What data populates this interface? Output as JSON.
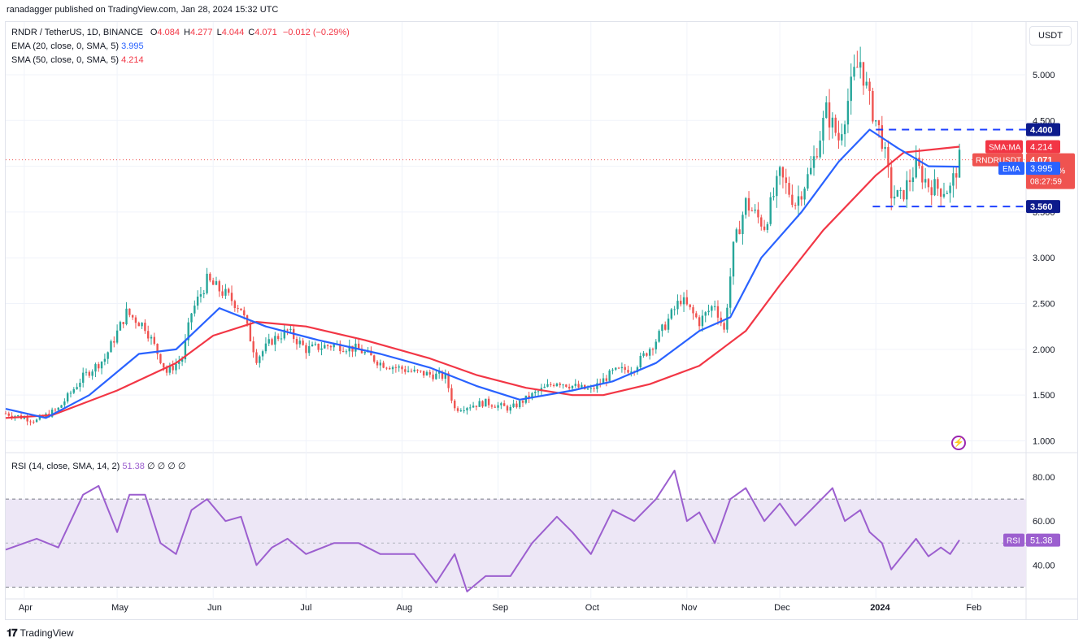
{
  "header": {
    "publisher": "ranadagger published on TradingView.com, Jan 28, 2024 15:32 UTC"
  },
  "legend": {
    "symbol": "RNDR / TetherUS, 1D, BINANCE",
    "o_label": "O",
    "o": "4.084",
    "h_label": "H",
    "h": "4.277",
    "l_label": "L",
    "l": "4.044",
    "c_label": "C",
    "c": "4.071",
    "change": "−0.012 (−0.29%)",
    "ema_label": "EMA (20, close, 0, SMA, 5)",
    "ema_value": "3.995",
    "sma_label": "SMA (50, close, 0, SMA, 5)",
    "sma_value": "4.214",
    "rsi_label": "RSI (14, close, SMA, 14, 2)",
    "rsi_value": "51.38",
    "rsi_extra": "∅ ∅ ∅ ∅"
  },
  "currency_button": "USDT",
  "footer": {
    "brand": "TradingView"
  },
  "colors": {
    "up": "#26a69a",
    "down": "#ef5350",
    "ema": "#2962ff",
    "sma": "#f23645",
    "rsi": "#9c5fcf",
    "rsi_band": "#ede7f6",
    "level": "#1e40ff",
    "grid": "#f0f3fa"
  },
  "chart_data": [
    {
      "type": "candlestick",
      "title": "RNDR / TetherUS, 1D, BINANCE",
      "x_range": [
        "2023-03-26",
        "2024-02-18"
      ],
      "x_ticks": [
        "Apr",
        "May",
        "Jun",
        "Jul",
        "Aug",
        "Sep",
        "Oct",
        "Nov",
        "Dec",
        "2024",
        "Feb"
      ],
      "ylim": [
        0.88,
        5.55
      ],
      "y_ticks": [
        "1.000",
        "1.500",
        "2.000",
        "2.500",
        "3.000",
        "3.500",
        "4.000",
        "4.500",
        "5.000"
      ],
      "grid": true,
      "close_path": [
        [
          "2023-03-26",
          1.3
        ],
        [
          "2023-04-05",
          1.22
        ],
        [
          "2023-04-12",
          1.35
        ],
        [
          "2023-04-20",
          1.7
        ],
        [
          "2023-04-27",
          1.9
        ],
        [
          "2023-05-04",
          2.4
        ],
        [
          "2023-05-10",
          2.25
        ],
        [
          "2023-05-17",
          1.75
        ],
        [
          "2023-05-22",
          1.9
        ],
        [
          "2023-05-25",
          2.4
        ],
        [
          "2023-05-30",
          2.75
        ],
        [
          "2023-06-05",
          2.6
        ],
        [
          "2023-06-10",
          2.45
        ],
        [
          "2023-06-15",
          1.9
        ],
        [
          "2023-06-20",
          2.1
        ],
        [
          "2023-06-25",
          2.2
        ],
        [
          "2023-07-01",
          2.0
        ],
        [
          "2023-07-10",
          2.05
        ],
        [
          "2023-07-18",
          2.0
        ],
        [
          "2023-07-25",
          1.85
        ],
        [
          "2023-08-05",
          1.75
        ],
        [
          "2023-08-15",
          1.7
        ],
        [
          "2023-08-18",
          1.35
        ],
        [
          "2023-08-28",
          1.42
        ],
        [
          "2023-09-05",
          1.35
        ],
        [
          "2023-09-12",
          1.5
        ],
        [
          "2023-09-20",
          1.65
        ],
        [
          "2023-09-25",
          1.6
        ],
        [
          "2023-10-01",
          1.55
        ],
        [
          "2023-10-08",
          1.75
        ],
        [
          "2023-10-15",
          1.8
        ],
        [
          "2023-10-22",
          2.1
        ],
        [
          "2023-10-30",
          2.55
        ],
        [
          "2023-11-05",
          2.3
        ],
        [
          "2023-11-10",
          2.5
        ],
        [
          "2023-11-13",
          2.2
        ],
        [
          "2023-11-16",
          3.1
        ],
        [
          "2023-11-20",
          3.6
        ],
        [
          "2023-11-26",
          3.35
        ],
        [
          "2023-12-01",
          3.9
        ],
        [
          "2023-12-06",
          3.6
        ],
        [
          "2023-12-11",
          3.95
        ],
        [
          "2023-12-16",
          4.6
        ],
        [
          "2023-12-20",
          4.3
        ],
        [
          "2023-12-25",
          5.0
        ],
        [
          "2023-12-27",
          5.15
        ],
        [
          "2023-12-30",
          4.7
        ],
        [
          "2024-01-03",
          4.3
        ],
        [
          "2024-01-06",
          3.7
        ],
        [
          "2024-01-09",
          3.65
        ],
        [
          "2024-01-14",
          4.0
        ],
        [
          "2024-01-18",
          3.8
        ],
        [
          "2024-01-22",
          3.75
        ],
        [
          "2024-01-25",
          3.75
        ],
        [
          "2024-01-28",
          4.071
        ]
      ],
      "sma50_path": [
        [
          "2023-03-26",
          1.25
        ],
        [
          "2023-04-10",
          1.28
        ],
        [
          "2023-05-01",
          1.55
        ],
        [
          "2023-05-20",
          1.85
        ],
        [
          "2023-06-01",
          2.15
        ],
        [
          "2023-06-15",
          2.3
        ],
        [
          "2023-07-01",
          2.25
        ],
        [
          "2023-07-20",
          2.1
        ],
        [
          "2023-08-10",
          1.9
        ],
        [
          "2023-08-25",
          1.72
        ],
        [
          "2023-09-10",
          1.58
        ],
        [
          "2023-09-25",
          1.5
        ],
        [
          "2023-10-05",
          1.5
        ],
        [
          "2023-10-20",
          1.62
        ],
        [
          "2023-11-05",
          1.82
        ],
        [
          "2023-11-20",
          2.2
        ],
        [
          "2023-12-01",
          2.7
        ],
        [
          "2023-12-15",
          3.3
        ],
        [
          "2024-01-01",
          3.9
        ],
        [
          "2024-01-10",
          4.15
        ],
        [
          "2024-01-28",
          4.214
        ]
      ],
      "ema20_path": [
        [
          "2023-03-26",
          1.35
        ],
        [
          "2023-04-08",
          1.25
        ],
        [
          "2023-04-22",
          1.5
        ],
        [
          "2023-05-08",
          1.95
        ],
        [
          "2023-05-20",
          2.0
        ],
        [
          "2023-06-03",
          2.45
        ],
        [
          "2023-06-18",
          2.25
        ],
        [
          "2023-07-05",
          2.1
        ],
        [
          "2023-07-25",
          1.95
        ],
        [
          "2023-08-10",
          1.8
        ],
        [
          "2023-08-25",
          1.6
        ],
        [
          "2023-09-08",
          1.45
        ],
        [
          "2023-09-25",
          1.55
        ],
        [
          "2023-10-08",
          1.65
        ],
        [
          "2023-10-22",
          1.85
        ],
        [
          "2023-11-05",
          2.2
        ],
        [
          "2023-11-15",
          2.35
        ],
        [
          "2023-11-25",
          3.0
        ],
        [
          "2023-12-08",
          3.5
        ],
        [
          "2023-12-20",
          4.05
        ],
        [
          "2023-12-30",
          4.4
        ],
        [
          "2024-01-08",
          4.2
        ],
        [
          "2024-01-18",
          4.0
        ],
        [
          "2024-01-28",
          3.995
        ]
      ],
      "levels": [
        {
          "value": 4.4,
          "label": "4.400",
          "from": "2024-01-01",
          "to": "2024-01-30"
        },
        {
          "value": 3.56,
          "label": "3.560",
          "from": "2023-12-31",
          "to": "2024-01-30"
        }
      ],
      "price_tags": [
        {
          "name": "SMA:MA",
          "value": "4.214"
        },
        {
          "name": "RNDRUSDT",
          "value": "4.071",
          "change": "+205.63%",
          "countdown": "08:27:59"
        },
        {
          "name": "EMA",
          "value": "3.995"
        }
      ]
    },
    {
      "type": "line",
      "title": "RSI (14, close, SMA, 14, 2)",
      "ylim": [
        25,
        90
      ],
      "y_ticks": [
        "40.00",
        "60.00",
        "80.00"
      ],
      "band": [
        30,
        70
      ],
      "midline": 50,
      "values_path": [
        [
          "2023-03-26",
          47
        ],
        [
          "2023-04-05",
          52
        ],
        [
          "2023-04-12",
          48
        ],
        [
          "2023-04-20",
          72
        ],
        [
          "2023-04-25",
          76
        ],
        [
          "2023-05-01",
          55
        ],
        [
          "2023-05-05",
          72
        ],
        [
          "2023-05-10",
          72
        ],
        [
          "2023-05-15",
          50
        ],
        [
          "2023-05-20",
          45
        ],
        [
          "2023-05-25",
          65
        ],
        [
          "2023-05-30",
          70
        ],
        [
          "2023-06-05",
          60
        ],
        [
          "2023-06-10",
          62
        ],
        [
          "2023-06-15",
          40
        ],
        [
          "2023-06-20",
          48
        ],
        [
          "2023-06-25",
          52
        ],
        [
          "2023-07-01",
          45
        ],
        [
          "2023-07-10",
          50
        ],
        [
          "2023-07-18",
          50
        ],
        [
          "2023-07-25",
          45
        ],
        [
          "2023-08-05",
          45
        ],
        [
          "2023-08-12",
          32
        ],
        [
          "2023-08-18",
          45
        ],
        [
          "2023-08-22",
          28
        ],
        [
          "2023-08-28",
          35
        ],
        [
          "2023-09-05",
          35
        ],
        [
          "2023-09-12",
          50
        ],
        [
          "2023-09-20",
          62
        ],
        [
          "2023-09-25",
          55
        ],
        [
          "2023-10-01",
          45
        ],
        [
          "2023-10-08",
          65
        ],
        [
          "2023-10-15",
          60
        ],
        [
          "2023-10-22",
          70
        ],
        [
          "2023-10-28",
          83
        ],
        [
          "2023-11-01",
          60
        ],
        [
          "2023-11-05",
          64
        ],
        [
          "2023-11-10",
          50
        ],
        [
          "2023-11-15",
          70
        ],
        [
          "2023-11-20",
          75
        ],
        [
          "2023-11-26",
          60
        ],
        [
          "2023-12-01",
          68
        ],
        [
          "2023-12-06",
          58
        ],
        [
          "2023-12-11",
          65
        ],
        [
          "2023-12-18",
          75
        ],
        [
          "2023-12-22",
          60
        ],
        [
          "2023-12-27",
          65
        ],
        [
          "2023-12-30",
          55
        ],
        [
          "2024-01-03",
          50
        ],
        [
          "2024-01-06",
          38
        ],
        [
          "2024-01-10",
          45
        ],
        [
          "2024-01-14",
          52
        ],
        [
          "2024-01-18",
          44
        ],
        [
          "2024-01-22",
          48
        ],
        [
          "2024-01-25",
          45
        ],
        [
          "2024-01-28",
          51.38
        ]
      ]
    }
  ]
}
